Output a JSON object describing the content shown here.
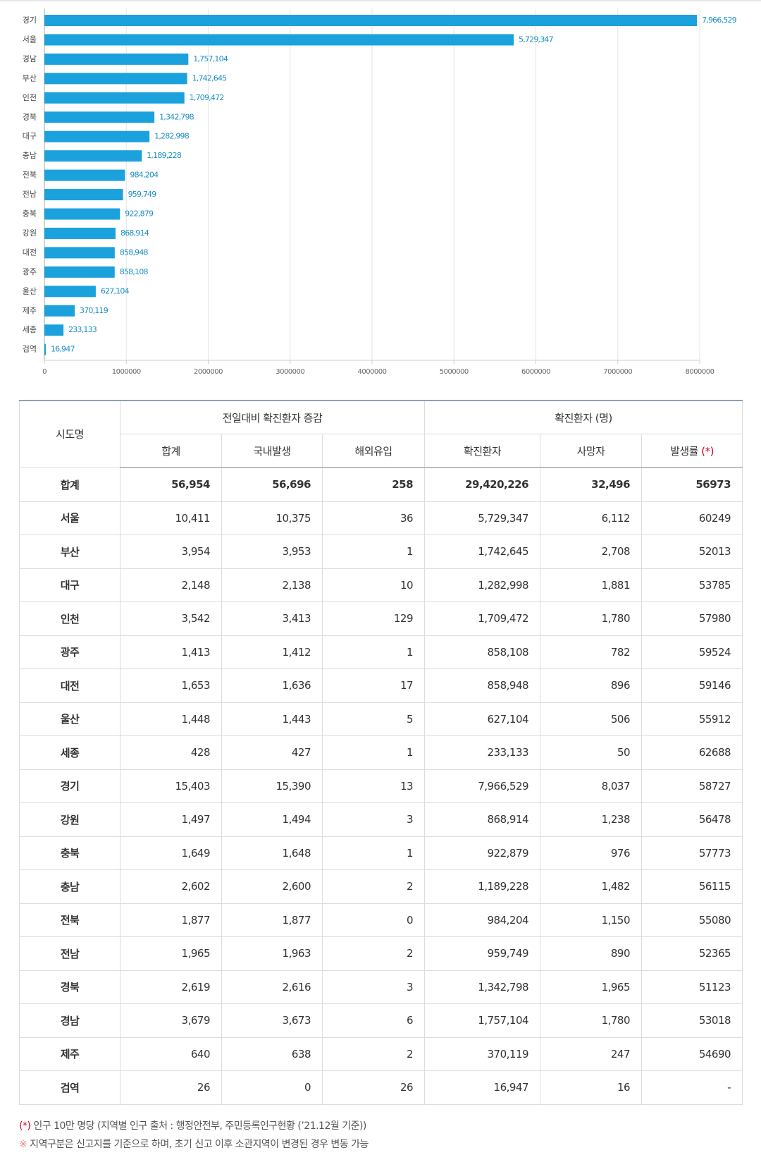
{
  "chart_data": {
    "type": "bar",
    "orientation": "horizontal",
    "color": "#1ba1dc",
    "grid": true,
    "categories": [
      "경기",
      "서울",
      "경남",
      "부산",
      "인천",
      "경북",
      "대구",
      "충남",
      "전북",
      "전남",
      "충북",
      "강원",
      "대전",
      "광주",
      "울산",
      "제주",
      "세종",
      "검역"
    ],
    "values": [
      7966529,
      5729347,
      1757104,
      1742645,
      1709472,
      1342798,
      1282998,
      1189228,
      984204,
      959749,
      922879,
      868914,
      858948,
      858108,
      627104,
      370119,
      233133,
      16947
    ],
    "value_labels": [
      "7,966,529",
      "5,729,347",
      "1,757,104",
      "1,742,645",
      "1,709,472",
      "1,342,798",
      "1,282,998",
      "1,189,228",
      "984,204",
      "959,749",
      "922,879",
      "868,914",
      "858,948",
      "858,108",
      "627,104",
      "370,119",
      "233,133",
      "16,947"
    ],
    "xlim": [
      0,
      8000000
    ],
    "xticks": [
      0,
      1000000,
      2000000,
      3000000,
      4000000,
      5000000,
      6000000,
      7000000,
      8000000
    ]
  },
  "table": {
    "header": {
      "region": "시도명",
      "group1": "전일대비 확진환자 증감",
      "group2": "확진환자 (명)",
      "columns": [
        "합계",
        "국내발생",
        "해외유입",
        "확진환자",
        "사망자",
        "발생률"
      ],
      "marker": "(*)"
    },
    "rows": [
      [
        "합계",
        "56,954",
        "56,696",
        "258",
        "29,420,226",
        "32,496",
        "56973"
      ],
      [
        "서울",
        "10,411",
        "10,375",
        "36",
        "5,729,347",
        "6,112",
        "60249"
      ],
      [
        "부산",
        "3,954",
        "3,953",
        "1",
        "1,742,645",
        "2,708",
        "52013"
      ],
      [
        "대구",
        "2,148",
        "2,138",
        "10",
        "1,282,998",
        "1,881",
        "53785"
      ],
      [
        "인천",
        "3,542",
        "3,413",
        "129",
        "1,709,472",
        "1,780",
        "57980"
      ],
      [
        "광주",
        "1,413",
        "1,412",
        "1",
        "858,108",
        "782",
        "59524"
      ],
      [
        "대전",
        "1,653",
        "1,636",
        "17",
        "858,948",
        "896",
        "59146"
      ],
      [
        "울산",
        "1,448",
        "1,443",
        "5",
        "627,104",
        "506",
        "55912"
      ],
      [
        "세종",
        "428",
        "427",
        "1",
        "233,133",
        "50",
        "62688"
      ],
      [
        "경기",
        "15,403",
        "15,390",
        "13",
        "7,966,529",
        "8,037",
        "58727"
      ],
      [
        "강원",
        "1,497",
        "1,494",
        "3",
        "868,914",
        "1,238",
        "56478"
      ],
      [
        "충북",
        "1,649",
        "1,648",
        "1",
        "922,879",
        "976",
        "57773"
      ],
      [
        "충남",
        "2,602",
        "2,600",
        "2",
        "1,189,228",
        "1,482",
        "56115"
      ],
      [
        "전북",
        "1,877",
        "1,877",
        "0",
        "984,204",
        "1,150",
        "55080"
      ],
      [
        "전남",
        "1,965",
        "1,963",
        "2",
        "959,749",
        "890",
        "52365"
      ],
      [
        "경북",
        "2,619",
        "2,616",
        "3",
        "1,342,798",
        "1,965",
        "51123"
      ],
      [
        "경남",
        "3,679",
        "3,673",
        "6",
        "1,757,104",
        "1,780",
        "53018"
      ],
      [
        "제주",
        "640",
        "638",
        "2",
        "370,119",
        "247",
        "54690"
      ],
      [
        "검역",
        "26",
        "0",
        "26",
        "16,947",
        "16",
        "-"
      ]
    ]
  },
  "notes": [
    {
      "symbol": "(*)",
      "text": " 인구 10만 명당 (지역별 인구 출처 : 행정안전부, 주민등록인구현황 (’21.12월 기준))"
    },
    {
      "symbol": "※",
      "text": " 지역구분은 신고지를 기준으로 하며, 초기 신고 이후 소관지역이 변경된 경우 변동 가능"
    }
  ]
}
